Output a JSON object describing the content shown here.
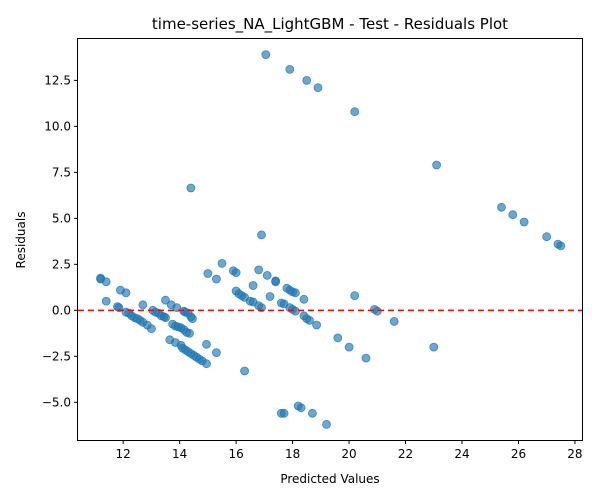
{
  "chart_data": {
    "type": "scatter",
    "title": "time-series_NA_LightGBM - Test - Residuals Plot",
    "xlabel": "Predicted Values",
    "ylabel": "Residuals",
    "xlim": [
      10.4,
      28.25
    ],
    "ylim": [
      -7.05,
      14.75
    ],
    "xticks": [
      12,
      14,
      16,
      18,
      20,
      22,
      24,
      26,
      28
    ],
    "xtick_labels": [
      "12",
      "14",
      "16",
      "18",
      "20",
      "22",
      "24",
      "26",
      "28"
    ],
    "yticks": [
      -5.0,
      -2.5,
      0.0,
      2.5,
      5.0,
      7.5,
      10.0,
      12.5
    ],
    "ytick_labels": [
      "−5.0",
      "−2.5",
      "0.0",
      "2.5",
      "5.0",
      "7.5",
      "10.0",
      "12.5"
    ],
    "reference_line": {
      "y": 0,
      "style": "dashed",
      "color": "#ff0000"
    },
    "grid": false,
    "point_color": "#1f77b4",
    "point_alpha": 0.65,
    "points": [
      [
        17.05,
        13.9
      ],
      [
        17.9,
        13.1
      ],
      [
        18.5,
        12.5
      ],
      [
        18.9,
        12.1
      ],
      [
        20.2,
        10.8
      ],
      [
        23.1,
        7.9
      ],
      [
        14.4,
        6.65
      ],
      [
        25.4,
        5.6
      ],
      [
        25.8,
        5.2
      ],
      [
        26.2,
        4.8
      ],
      [
        27.0,
        4.0
      ],
      [
        27.4,
        3.6
      ],
      [
        27.5,
        3.5
      ],
      [
        16.9,
        4.1
      ],
      [
        15.5,
        2.55
      ],
      [
        16.8,
        2.2
      ],
      [
        15.9,
        2.15
      ],
      [
        16.0,
        2.05
      ],
      [
        15.0,
        2.0
      ],
      [
        17.1,
        1.9
      ],
      [
        15.3,
        1.7
      ],
      [
        17.4,
        1.6
      ],
      [
        17.4,
        1.55
      ],
      [
        16.6,
        1.35
      ],
      [
        17.8,
        1.2
      ],
      [
        17.9,
        1.1
      ],
      [
        18.0,
        1.0
      ],
      [
        18.1,
        0.95
      ],
      [
        16.0,
        1.05
      ],
      [
        16.1,
        0.9
      ],
      [
        16.2,
        0.8
      ],
      [
        16.3,
        0.7
      ],
      [
        17.2,
        0.75
      ],
      [
        16.5,
        0.5
      ],
      [
        16.6,
        0.45
      ],
      [
        17.7,
        0.35
      ],
      [
        17.6,
        0.4
      ],
      [
        18.4,
        0.6
      ],
      [
        16.8,
        0.25
      ],
      [
        16.9,
        0.15
      ],
      [
        17.9,
        0.15
      ],
      [
        18.0,
        0.05
      ],
      [
        18.1,
        -0.05
      ],
      [
        20.2,
        0.8
      ],
      [
        20.9,
        0.05
      ],
      [
        21.0,
        -0.05
      ],
      [
        21.6,
        -0.6
      ],
      [
        18.4,
        -0.3
      ],
      [
        18.5,
        -0.45
      ],
      [
        18.6,
        -0.55
      ],
      [
        18.85,
        -0.8
      ],
      [
        19.6,
        -1.5
      ],
      [
        20.0,
        -2.0
      ],
      [
        20.6,
        -2.6
      ],
      [
        23.0,
        -2.0
      ],
      [
        11.2,
        1.75
      ],
      [
        11.2,
        1.7
      ],
      [
        11.4,
        1.55
      ],
      [
        11.9,
        1.1
      ],
      [
        12.1,
        0.95
      ],
      [
        11.4,
        0.5
      ],
      [
        11.8,
        0.2
      ],
      [
        11.85,
        0.15
      ],
      [
        12.1,
        -0.1
      ],
      [
        12.2,
        -0.15
      ],
      [
        12.3,
        -0.3
      ],
      [
        12.4,
        -0.4
      ],
      [
        12.5,
        -0.45
      ],
      [
        12.6,
        -0.55
      ],
      [
        12.7,
        -0.65
      ],
      [
        12.7,
        0.3
      ],
      [
        12.85,
        -0.8
      ],
      [
        13.0,
        -1.0
      ],
      [
        13.05,
        0.0
      ],
      [
        13.15,
        -0.1
      ],
      [
        13.25,
        -0.15
      ],
      [
        13.35,
        -0.3
      ],
      [
        13.45,
        -0.35
      ],
      [
        13.5,
        -0.4
      ],
      [
        13.5,
        0.55
      ],
      [
        13.7,
        0.3
      ],
      [
        13.9,
        0.15
      ],
      [
        14.15,
        -0.05
      ],
      [
        14.2,
        -0.1
      ],
      [
        14.3,
        -0.15
      ],
      [
        14.4,
        -0.35
      ],
      [
        14.45,
        -0.45
      ],
      [
        13.75,
        -0.75
      ],
      [
        13.85,
        -0.85
      ],
      [
        13.95,
        -0.9
      ],
      [
        14.05,
        -0.95
      ],
      [
        14.15,
        -1.05
      ],
      [
        14.25,
        -1.2
      ],
      [
        14.35,
        -1.25
      ],
      [
        13.65,
        -1.6
      ],
      [
        13.85,
        -1.75
      ],
      [
        14.05,
        -1.9
      ],
      [
        14.1,
        -2.05
      ],
      [
        14.2,
        -2.15
      ],
      [
        14.3,
        -2.25
      ],
      [
        14.4,
        -2.35
      ],
      [
        14.5,
        -2.45
      ],
      [
        14.6,
        -2.55
      ],
      [
        14.7,
        -2.65
      ],
      [
        14.8,
        -2.75
      ],
      [
        14.95,
        -2.9
      ],
      [
        14.95,
        -1.85
      ],
      [
        15.3,
        -2.3
      ],
      [
        16.3,
        -3.3
      ],
      [
        17.6,
        -5.6
      ],
      [
        17.7,
        -5.6
      ],
      [
        18.2,
        -5.2
      ],
      [
        18.3,
        -5.3
      ],
      [
        18.7,
        -5.6
      ],
      [
        19.2,
        -6.2
      ]
    ]
  }
}
